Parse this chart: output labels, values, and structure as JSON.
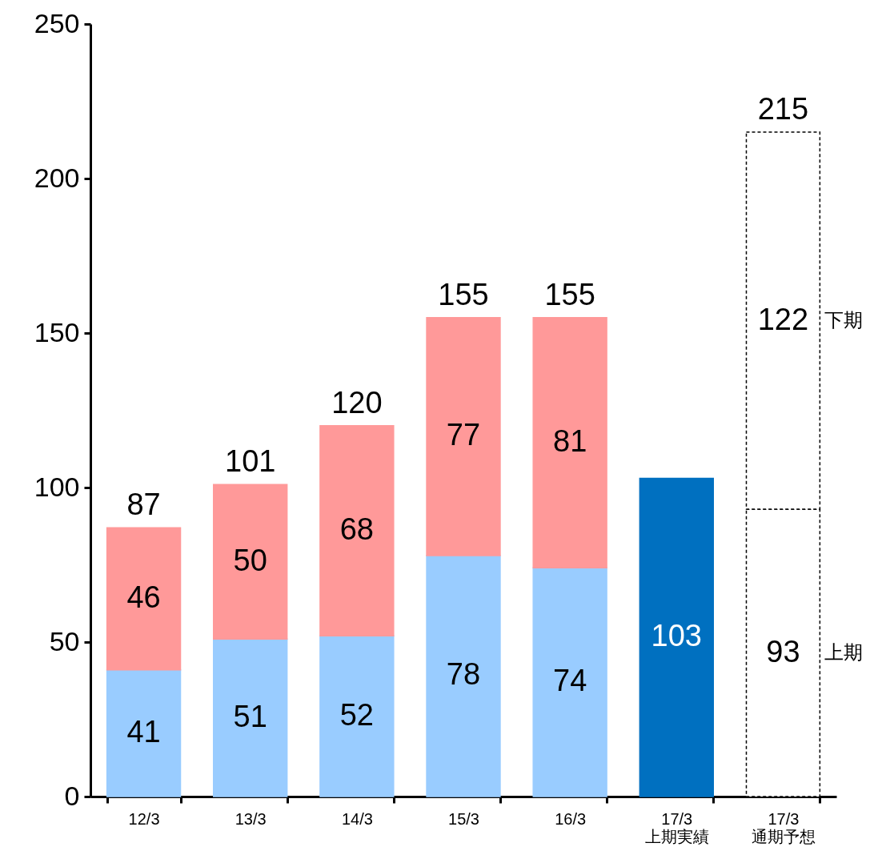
{
  "chart_data": {
    "type": "bar",
    "stacked": true,
    "categories": [
      "12/3",
      "13/3",
      "14/3",
      "15/3",
      "16/3",
      "17/3\n上期実績",
      "17/3\n通期予想"
    ],
    "series": [
      {
        "name": "上期",
        "colors": [
          "#99ccff",
          "#99ccff",
          "#99ccff",
          "#99ccff",
          "#99ccff",
          "#0070c0",
          "#ffffff"
        ],
        "values": [
          41,
          51,
          52,
          78,
          74,
          103,
          93
        ]
      },
      {
        "name": "下期",
        "colors": [
          "#ff9999",
          "#ff9999",
          "#ff9999",
          "#ff9999",
          "#ff9999",
          null,
          "#ffffff"
        ],
        "values": [
          46,
          50,
          68,
          77,
          81,
          null,
          122
        ]
      }
    ],
    "totals": [
      "87",
      "101",
      "120",
      "155",
      "155",
      null,
      "215"
    ],
    "data_labels": true,
    "grid": false,
    "ylim": [
      0,
      250
    ],
    "yticks": [
      0,
      50,
      100,
      150,
      200,
      250
    ]
  }
}
